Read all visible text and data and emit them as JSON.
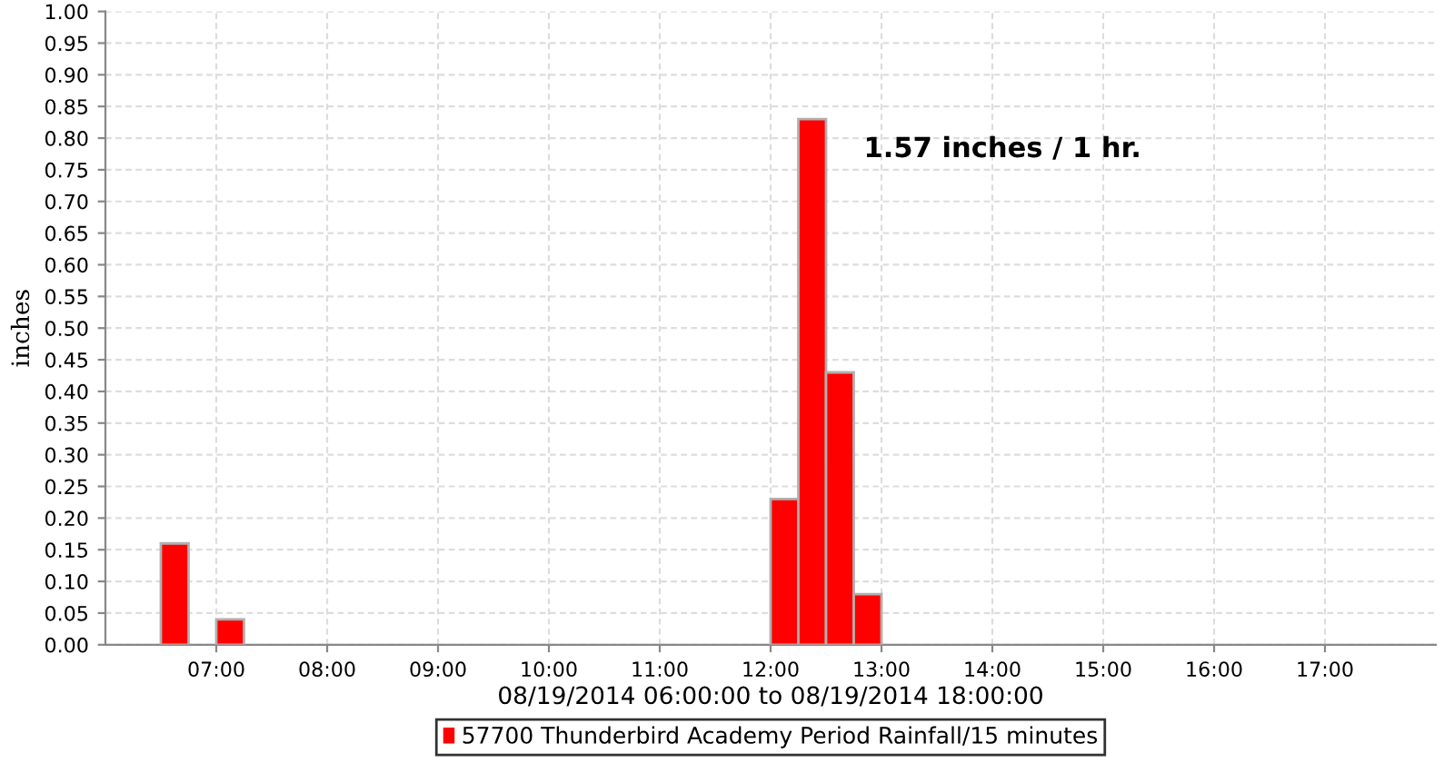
{
  "chart_data": {
    "type": "bar",
    "xlabel": "08/19/2014 06:00:00 to 08/19/2014 18:00:00",
    "ylabel": "inches",
    "annotations": [
      "1.57 inches / 1 hr."
    ],
    "x": [
      6.625,
      7.125,
      12.125,
      12.375,
      12.625,
      12.875
    ],
    "series": [
      {
        "name": "57700 Thunderbird Academy Period Rainfall/15 minutes",
        "color": "#ff0000",
        "values": [
          0.16,
          0.04,
          0.23,
          0.83,
          0.43,
          0.08
        ]
      }
    ],
    "xlim": [
      6,
      18
    ],
    "xticks": [
      {
        "value": 7,
        "label": "07:00"
      },
      {
        "value": 8,
        "label": "08:00"
      },
      {
        "value": 9,
        "label": "09:00"
      },
      {
        "value": 10,
        "label": "10:00"
      },
      {
        "value": 11,
        "label": "11:00"
      },
      {
        "value": 12,
        "label": "12:00"
      },
      {
        "value": 13,
        "label": "13:00"
      },
      {
        "value": 14,
        "label": "14:00"
      },
      {
        "value": 15,
        "label": "15:00"
      },
      {
        "value": 16,
        "label": "16:00"
      },
      {
        "value": 17,
        "label": "17:00"
      }
    ],
    "ylim": [
      0,
      1
    ],
    "yticks": [
      {
        "value": 0,
        "label": "0.00"
      },
      {
        "value": 0.05,
        "label": "0.05"
      },
      {
        "value": 0.1,
        "label": "0.10"
      },
      {
        "value": 0.15,
        "label": "0.15"
      },
      {
        "value": 0.2,
        "label": "0.20"
      },
      {
        "value": 0.25,
        "label": "0.25"
      },
      {
        "value": 0.3,
        "label": "0.30"
      },
      {
        "value": 0.35,
        "label": "0.35"
      },
      {
        "value": 0.4,
        "label": "0.40"
      },
      {
        "value": 0.45,
        "label": "0.45"
      },
      {
        "value": 0.5,
        "label": "0.50"
      },
      {
        "value": 0.55,
        "label": "0.55"
      },
      {
        "value": 0.6,
        "label": "0.60"
      },
      {
        "value": 0.65,
        "label": "0.65"
      },
      {
        "value": 0.7,
        "label": "0.70"
      },
      {
        "value": 0.75,
        "label": "0.75"
      },
      {
        "value": 0.8,
        "label": "0.80"
      },
      {
        "value": 0.85,
        "label": "0.85"
      },
      {
        "value": 0.9,
        "label": "0.90"
      },
      {
        "value": 0.95,
        "label": "0.95"
      },
      {
        "value": 1,
        "label": "1.00"
      }
    ],
    "grid": true,
    "legend": "bottom"
  }
}
